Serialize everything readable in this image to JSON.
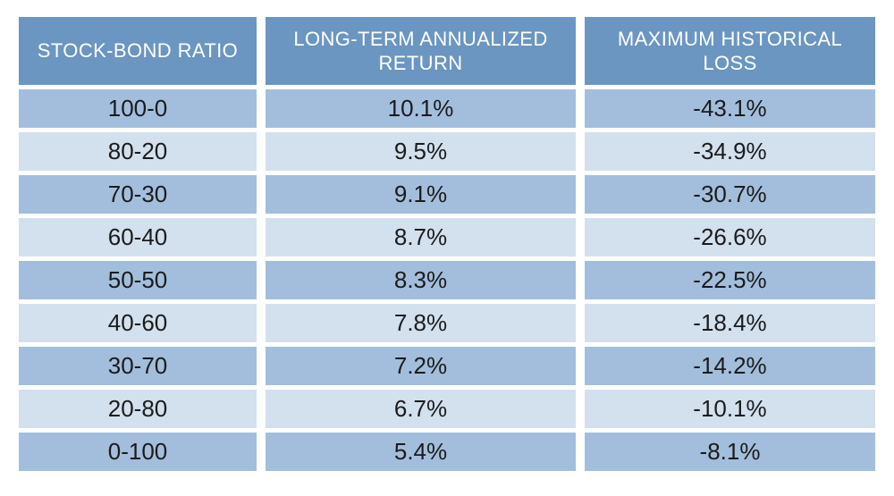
{
  "chart_data": {
    "type": "table",
    "title": "",
    "columns": [
      "STOCK-BOND RATIO",
      "LONG-TERM ANNUALIZED RETURN",
      "MAXIMUM HISTORICAL LOSS"
    ],
    "rows": [
      [
        "100-0",
        "10.1%",
        "-43.1%"
      ],
      [
        "80-20",
        "9.5%",
        "-34.9%"
      ],
      [
        "70-30",
        "9.1%",
        "-30.7%"
      ],
      [
        "60-40",
        "8.7%",
        "-26.6%"
      ],
      [
        "50-50",
        "8.3%",
        "-22.5%"
      ],
      [
        "40-60",
        "7.8%",
        "-18.4%"
      ],
      [
        "30-70",
        "7.2%",
        "-14.2%"
      ],
      [
        "20-80",
        "6.7%",
        "-10.1%"
      ],
      [
        "0-100",
        "5.4%",
        "-8.1%"
      ]
    ],
    "row_shading_pattern": [
      "dark",
      "light",
      "dark",
      "light",
      "dark",
      "light",
      "dark",
      "light",
      "dark"
    ],
    "legend_position": "none",
    "grid": false
  },
  "colors": {
    "page_bg": "#ffffff",
    "header_bg": "#6b96c2",
    "header_text": "#ffffff",
    "row_dark": "#a3bedc",
    "row_light": "#d3e0ee",
    "cell_text": "#1b1b1b"
  }
}
